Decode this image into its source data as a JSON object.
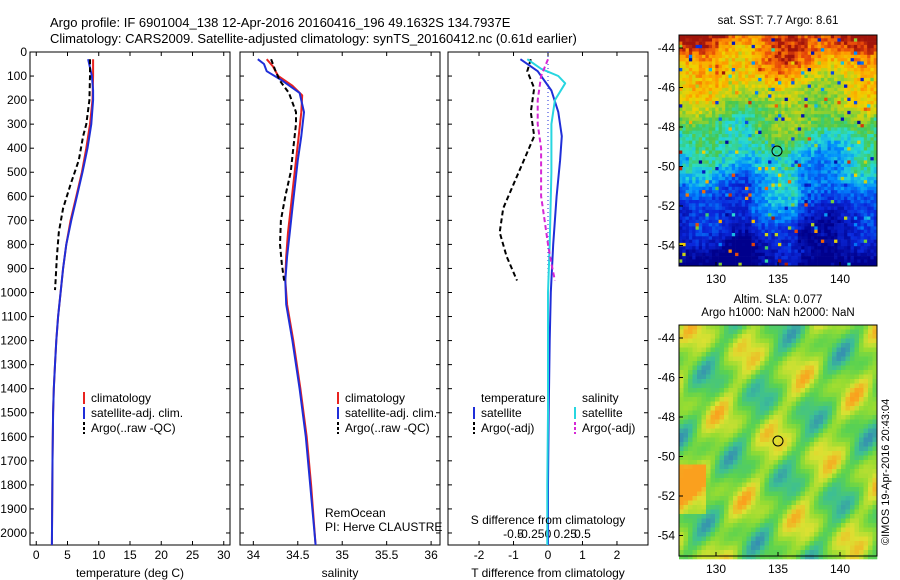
{
  "header": {
    "line1": "Argo profile: IF 6901004_138 12-Apr-2016 20160416_196 49.1632S 134.7937E",
    "line2": "Climatology: CARS2009. Satellite-adjusted climatology: synTS_20160412.nc (0.61d earlier)"
  },
  "labels": {
    "temp_xlabel": "temperature (deg C)",
    "sal_xlabel": "salinity",
    "diff_xlabel": "T difference from climatology",
    "diff_top_label": "S difference from climatology",
    "remocean": "RemOcean",
    "pi": "PI: Herve CLAUSTRE",
    "sst_title": "sat. SST: 7.7 Argo: 8.61",
    "sla_title1": "Altim. SLA: 0.077",
    "sla_title2": "Argo h1000: NaN h2000: NaN",
    "watermark": "©IMOS 19-Apr-2016 20:43:04"
  },
  "legend": {
    "clim": "climatology",
    "sat": "satellite-adj. clim.",
    "argo": "Argo(..raw -QC)",
    "temperature": "temperature",
    "salinity": "salinity",
    "satellite": "satellite",
    "argo_adj": "Argo(-adj)"
  },
  "colors": {
    "clim": "#e8231f",
    "sat": "#1f2ed8",
    "argo": "#000000",
    "sal_sat": "#27d6e0",
    "sal_argo": "#d628d6"
  },
  "chart_data": [
    {
      "type": "line",
      "xlabel": "temperature (deg C)",
      "ylabel": "",
      "xlim": [
        -1,
        31
      ],
      "ylim": [
        2050,
        0
      ],
      "xticks": [
        0,
        5,
        10,
        15,
        20,
        25,
        30
      ],
      "yticks": [
        0,
        100,
        200,
        300,
        400,
        500,
        600,
        700,
        800,
        900,
        1000,
        1100,
        1200,
        1300,
        1400,
        1500,
        1600,
        1700,
        1800,
        1900,
        2000
      ],
      "series": [
        {
          "name": "climatology",
          "points": [
            [
              9.1,
              30
            ],
            [
              9.1,
              100
            ],
            [
              9.0,
              200
            ],
            [
              8.6,
              300
            ],
            [
              8.0,
              400
            ],
            [
              7.3,
              500
            ],
            [
              6.4,
              600
            ],
            [
              5.5,
              700
            ],
            [
              4.8,
              800
            ],
            [
              4.3,
              900
            ],
            [
              3.9,
              1000
            ],
            [
              3.5,
              1100
            ],
            [
              3.2,
              1200
            ],
            [
              3.0,
              1300
            ],
            [
              2.8,
              1400
            ],
            [
              2.7,
              1500
            ],
            [
              2.6,
              1700
            ],
            [
              2.5,
              2050
            ]
          ]
        },
        {
          "name": "satellite-adj. clim.",
          "points": [
            [
              8.3,
              30
            ],
            [
              8.9,
              100
            ],
            [
              9.1,
              160
            ],
            [
              9.1,
              200
            ],
            [
              8.8,
              300
            ],
            [
              8.2,
              400
            ],
            [
              7.4,
              500
            ],
            [
              6.5,
              600
            ],
            [
              5.6,
              700
            ],
            [
              4.8,
              800
            ],
            [
              4.3,
              900
            ],
            [
              3.9,
              1000
            ],
            [
              3.5,
              1100
            ],
            [
              3.2,
              1200
            ],
            [
              3.0,
              1300
            ],
            [
              2.8,
              1400
            ],
            [
              2.7,
              1500
            ],
            [
              2.6,
              1700
            ],
            [
              2.5,
              2050
            ]
          ]
        },
        {
          "name": "Argo(..raw -QC)",
          "points": [
            [
              8.6,
              30
            ],
            [
              8.6,
              100
            ],
            [
              8.5,
              200
            ],
            [
              8.0,
              300
            ],
            [
              7.5,
              350
            ],
            [
              6.8,
              450
            ],
            [
              5.5,
              550
            ],
            [
              4.3,
              650
            ],
            [
              3.6,
              750
            ],
            [
              3.3,
              850
            ],
            [
              3.1,
              950
            ],
            [
              3.0,
              990
            ]
          ]
        }
      ]
    },
    {
      "type": "line",
      "xlabel": "salinity",
      "ylabel": "",
      "xlim": [
        33.85,
        36.1
      ],
      "ylim": [
        2050,
        0
      ],
      "xticks": [
        34,
        34.5,
        35,
        35.5,
        36
      ],
      "series": [
        {
          "name": "climatology",
          "points": [
            [
              34.15,
              30
            ],
            [
              34.22,
              60
            ],
            [
              34.28,
              100
            ],
            [
              34.44,
              140
            ],
            [
              34.55,
              180
            ],
            [
              34.54,
              250
            ],
            [
              34.51,
              350
            ],
            [
              34.48,
              450
            ],
            [
              34.45,
              550
            ],
            [
              34.42,
              650
            ],
            [
              34.39,
              750
            ],
            [
              34.37,
              850
            ],
            [
              34.36,
              950
            ],
            [
              34.38,
              1050
            ],
            [
              34.45,
              1200
            ],
            [
              34.53,
              1400
            ],
            [
              34.6,
              1600
            ],
            [
              34.65,
              1800
            ],
            [
              34.7,
              2050
            ]
          ]
        },
        {
          "name": "satellite-adj. clim.",
          "points": [
            [
              34.05,
              30
            ],
            [
              34.12,
              50
            ],
            [
              34.15,
              80
            ],
            [
              34.33,
              120
            ],
            [
              34.52,
              170
            ],
            [
              34.57,
              250
            ],
            [
              34.54,
              350
            ],
            [
              34.5,
              450
            ],
            [
              34.47,
              550
            ],
            [
              34.44,
              650
            ],
            [
              34.41,
              750
            ],
            [
              34.38,
              850
            ],
            [
              34.36,
              950
            ],
            [
              34.37,
              1050
            ],
            [
              34.44,
              1200
            ],
            [
              34.52,
              1400
            ],
            [
              34.59,
              1600
            ],
            [
              34.64,
              1800
            ],
            [
              34.7,
              2050
            ]
          ]
        },
        {
          "name": "Argo(..raw -QC)",
          "points": [
            [
              34.2,
              30
            ],
            [
              34.25,
              80
            ],
            [
              34.3,
              120
            ],
            [
              34.4,
              170
            ],
            [
              34.48,
              250
            ],
            [
              34.48,
              300
            ],
            [
              34.45,
              400
            ],
            [
              34.42,
              500
            ],
            [
              34.36,
              600
            ],
            [
              34.31,
              700
            ],
            [
              34.3,
              800
            ],
            [
              34.32,
              880
            ],
            [
              34.35,
              960
            ]
          ]
        }
      ]
    },
    {
      "type": "line",
      "xlabel": "T difference from climatology",
      "ylabel": "",
      "xlim": [
        -2.9,
        2.9
      ],
      "ylim": [
        2050,
        0
      ],
      "xticks": [
        -2,
        -1,
        0,
        1,
        2
      ],
      "top_xlabel": "S difference from climatology",
      "top_xticks": [
        "-0.5",
        "-0.25",
        "0",
        "0.25",
        "0.5"
      ],
      "series": [
        {
          "name": "satellite (temperature)",
          "points": [
            [
              -0.8,
              30
            ],
            [
              -0.3,
              80
            ],
            [
              0.1,
              160
            ],
            [
              0.3,
              250
            ],
            [
              0.4,
              350
            ],
            [
              0.35,
              450
            ],
            [
              0.25,
              600
            ],
            [
              0.15,
              800
            ],
            [
              0.08,
              1000
            ],
            [
              0.05,
              1200
            ],
            [
              0.02,
              1500
            ],
            [
              0.0,
              1800
            ],
            [
              0.0,
              2050
            ]
          ]
        },
        {
          "name": "Argo(-adj) (temperature)",
          "points": [
            [
              -0.5,
              30
            ],
            [
              -0.6,
              80
            ],
            [
              -0.4,
              150
            ],
            [
              -0.5,
              250
            ],
            [
              -0.4,
              350
            ],
            [
              -0.7,
              450
            ],
            [
              -1.0,
              550
            ],
            [
              -1.3,
              650
            ],
            [
              -1.4,
              750
            ],
            [
              -1.2,
              850
            ],
            [
              -0.9,
              950
            ]
          ]
        },
        {
          "name": "satellite (salinity)",
          "points": [
            [
              -0.6,
              30
            ],
            [
              -0.2,
              70
            ],
            [
              0.3,
              100
            ],
            [
              0.5,
              130
            ],
            [
              0.2,
              200
            ],
            [
              0.1,
              300
            ],
            [
              0.1,
              500
            ],
            [
              0.05,
              800
            ],
            [
              0.0,
              1000
            ],
            [
              0.0,
              1500
            ],
            [
              -0.02,
              1800
            ],
            [
              -0.02,
              2050
            ]
          ]
        },
        {
          "name": "Argo(-adj) (salinity)",
          "points": [
            [
              0.0,
              30
            ],
            [
              -0.2,
              100
            ],
            [
              -0.3,
              200
            ],
            [
              -0.3,
              300
            ],
            [
              -0.2,
              400
            ],
            [
              -0.2,
              500
            ],
            [
              -0.2,
              600
            ],
            [
              -0.1,
              700
            ],
            [
              0.0,
              800
            ],
            [
              0.1,
              880
            ],
            [
              0.2,
              950
            ]
          ]
        }
      ]
    }
  ],
  "maps": {
    "sst": {
      "xticks": [
        "130",
        "135",
        "140"
      ],
      "yticks": [
        "-44",
        "-46",
        "-48",
        "-50",
        "-52",
        "-54"
      ]
    },
    "sla": {
      "xticks": [
        "130",
        "135",
        "140"
      ],
      "yticks": [
        "-44",
        "-46",
        "-48",
        "-50",
        "-52",
        "-54"
      ]
    }
  }
}
